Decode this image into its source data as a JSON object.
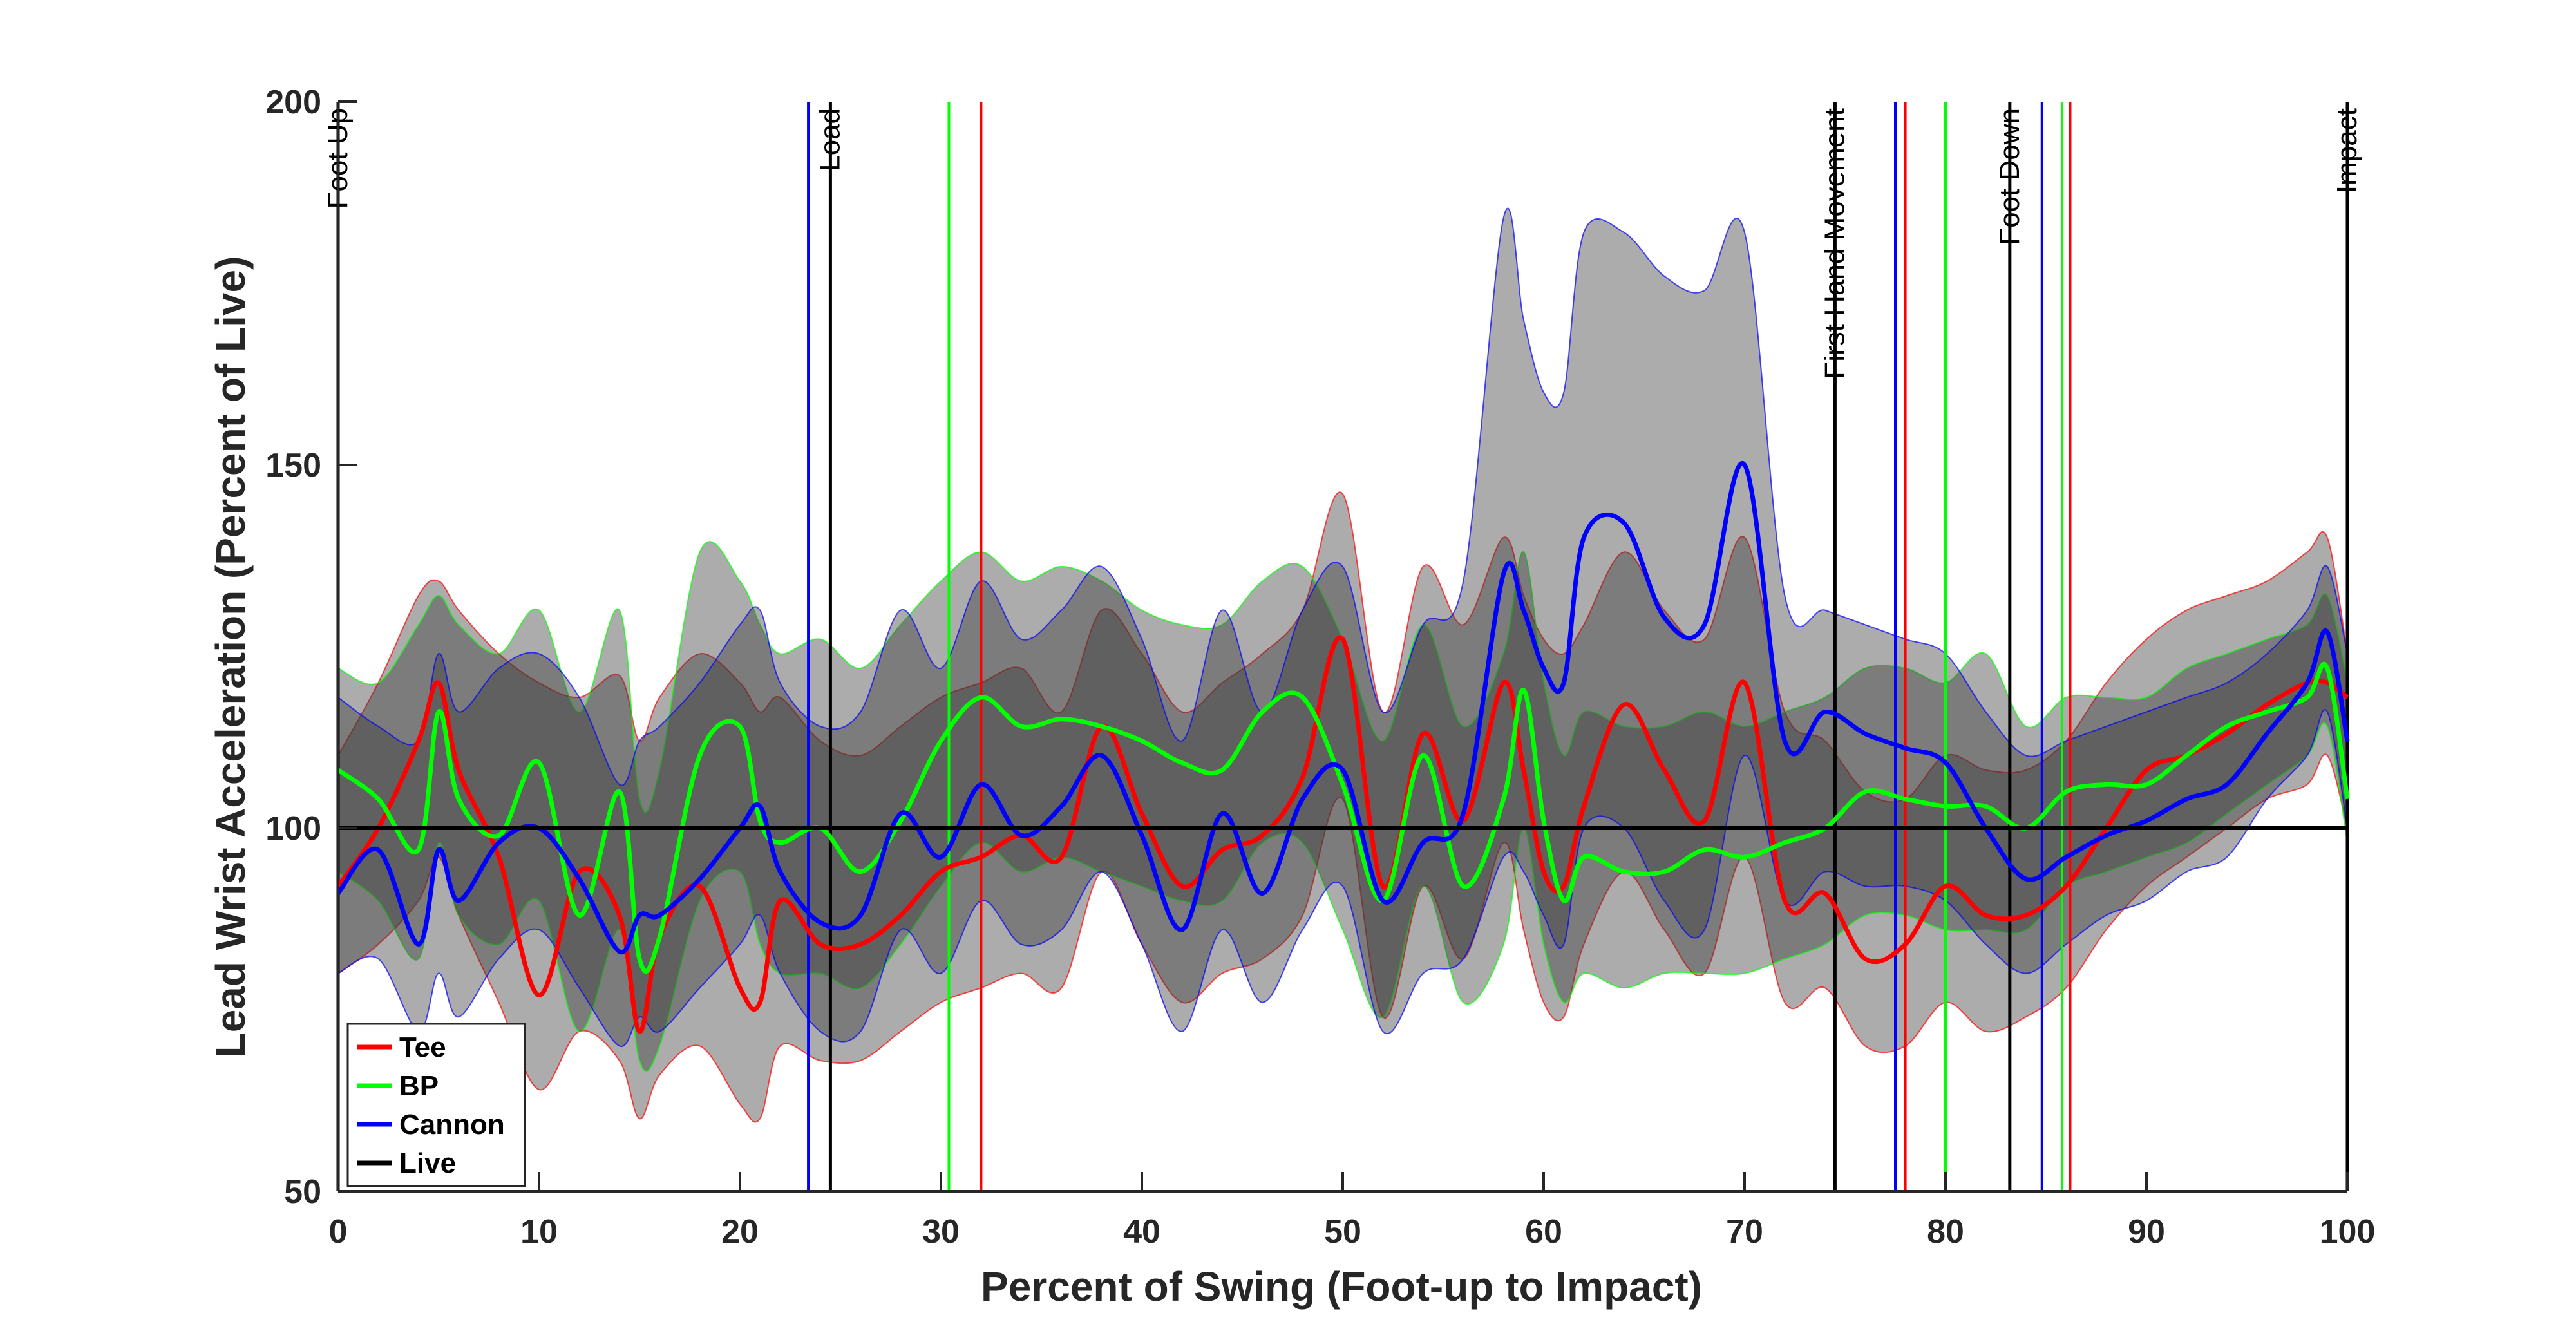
{
  "chart_data": {
    "type": "line",
    "xlabel": "Percent of Swing (Foot-up to Impact)",
    "ylabel": "Lead Wrist Acceleration (Percent of Live)",
    "xlim": [
      0,
      100
    ],
    "ylim": [
      50,
      200
    ],
    "xticks": [
      0,
      10,
      20,
      30,
      40,
      50,
      60,
      70,
      80,
      90,
      100
    ],
    "yticks": [
      50,
      100,
      150,
      200
    ],
    "grid": false,
    "legend_position": "bottom-left",
    "x": [
      0,
      2,
      4,
      5,
      6,
      8,
      10,
      12,
      14,
      15,
      16,
      18,
      20,
      21,
      22,
      24,
      26,
      28,
      30,
      32,
      34,
      36,
      38,
      40,
      42,
      44,
      46,
      48,
      50,
      52,
      54,
      56,
      58,
      59,
      60,
      61,
      62,
      64,
      66,
      68,
      70,
      72,
      74,
      76,
      78,
      80,
      82,
      84,
      86,
      88,
      90,
      92,
      94,
      96,
      98,
      99,
      100
    ],
    "series": [
      {
        "name": "Tee",
        "color": "#ff0000",
        "values": [
          92,
          100,
          112,
          120,
          108,
          96,
          77,
          94,
          88,
          72,
          85,
          92,
          78,
          76,
          90,
          84,
          84,
          88,
          94,
          96,
          99,
          96,
          114,
          102,
          92,
          97,
          99,
          107,
          126,
          92,
          113,
          101,
          120,
          108,
          94,
          92,
          103,
          117,
          108,
          101,
          120,
          90,
          91,
          82,
          84,
          92,
          88,
          88,
          92,
          100,
          108,
          110,
          113,
          117,
          120,
          120,
          118
        ],
        "band_upper": [
          110,
          120,
          132,
          134,
          130,
          124,
          120,
          118,
          121,
          112,
          118,
          124,
          120,
          116,
          118,
          112,
          110,
          114,
          118,
          120,
          122,
          116,
          130,
          124,
          116,
          120,
          124,
          130,
          146,
          116,
          136,
          128,
          140,
          132,
          126,
          124,
          128,
          138,
          130,
          126,
          140,
          116,
          112,
          105,
          104,
          110,
          108,
          108,
          112,
          120,
          126,
          130,
          132,
          134,
          138,
          140,
          124
        ],
        "band_lower": [
          80,
          84,
          90,
          96,
          88,
          76,
          64,
          72,
          68,
          60,
          66,
          70,
          62,
          60,
          70,
          68,
          68,
          72,
          76,
          78,
          80,
          78,
          94,
          84,
          76,
          80,
          82,
          88,
          104,
          74,
          92,
          82,
          98,
          86,
          76,
          74,
          84,
          94,
          86,
          80,
          96,
          76,
          78,
          70,
          70,
          76,
          72,
          74,
          78,
          86,
          92,
          96,
          100,
          104,
          106,
          110,
          100
        ]
      },
      {
        "name": "BP",
        "color": "#00ff00",
        "values": [
          108,
          104,
          97,
          116,
          104,
          99,
          109,
          88,
          105,
          82,
          85,
          110,
          114,
          101,
          98,
          100,
          94,
          101,
          112,
          118,
          114,
          115,
          114,
          112,
          109,
          108,
          116,
          118,
          106,
          90,
          110,
          92,
          104,
          119,
          101,
          90,
          96,
          94,
          94,
          97,
          96,
          98,
          100,
          105,
          104,
          103,
          103,
          100,
          105,
          106,
          106,
          110,
          114,
          116,
          118,
          122,
          104
        ],
        "band_upper": [
          122,
          120,
          128,
          132,
          128,
          124,
          130,
          116,
          130,
          104,
          108,
          138,
          134,
          128,
          124,
          126,
          122,
          128,
          134,
          138,
          134,
          136,
          134,
          130,
          128,
          128,
          134,
          136,
          126,
          112,
          128,
          114,
          124,
          138,
          120,
          110,
          116,
          114,
          114,
          116,
          114,
          116,
          118,
          122,
          122,
          120,
          124,
          114,
          118,
          118,
          118,
          122,
          124,
          126,
          128,
          132,
          120
        ],
        "band_lower": [
          94,
          90,
          82,
          98,
          88,
          84,
          90,
          72,
          86,
          68,
          70,
          90,
          94,
          84,
          80,
          80,
          78,
          84,
          92,
          98,
          94,
          96,
          94,
          92,
          90,
          90,
          98,
          98,
          86,
          74,
          92,
          76,
          84,
          100,
          84,
          76,
          80,
          78,
          80,
          80,
          80,
          82,
          84,
          88,
          88,
          86,
          86,
          86,
          92,
          94,
          96,
          98,
          102,
          106,
          110,
          114,
          98
        ]
      },
      {
        "name": "Cannon",
        "color": "#0000ff",
        "values": [
          91,
          97,
          84,
          97,
          90,
          98,
          100,
          93,
          83,
          88,
          88,
          93,
          100,
          103,
          94,
          87,
          88,
          102,
          96,
          106,
          99,
          103,
          110,
          99,
          86,
          102,
          91,
          104,
          108,
          90,
          98,
          102,
          135,
          130,
          122,
          120,
          140,
          142,
          129,
          128,
          150,
          112,
          116,
          113,
          111,
          109,
          100,
          93,
          96,
          99,
          101,
          104,
          106,
          113,
          120,
          127,
          112
        ],
        "band_upper": [
          118,
          114,
          112,
          124,
          116,
          122,
          124,
          118,
          106,
          112,
          114,
          120,
          128,
          130,
          120,
          114,
          116,
          130,
          122,
          134,
          126,
          130,
          136,
          126,
          112,
          130,
          116,
          130,
          136,
          116,
          128,
          134,
          184,
          170,
          160,
          160,
          182,
          182,
          176,
          174,
          182,
          132,
          130,
          128,
          126,
          124,
          116,
          110,
          112,
          114,
          116,
          118,
          120,
          124,
          130,
          136,
          124
        ],
        "band_lower": [
          80,
          82,
          72,
          80,
          74,
          82,
          86,
          78,
          70,
          74,
          72,
          78,
          84,
          88,
          80,
          72,
          72,
          86,
          80,
          90,
          84,
          86,
          94,
          84,
          72,
          86,
          76,
          86,
          92,
          72,
          80,
          82,
          96,
          94,
          88,
          84,
          100,
          100,
          90,
          86,
          110,
          90,
          94,
          92,
          92,
          90,
          84,
          80,
          84,
          88,
          90,
          94,
          96,
          104,
          110,
          116,
          100
        ]
      },
      {
        "name": "Live",
        "color": "#000000",
        "values": [
          100,
          100,
          100,
          100,
          100,
          100,
          100,
          100,
          100,
          100,
          100,
          100,
          100,
          100,
          100,
          100,
          100,
          100,
          100,
          100,
          100,
          100,
          100,
          100,
          100,
          100,
          100,
          100,
          100,
          100,
          100,
          100,
          100,
          100,
          100,
          100,
          100,
          100,
          100,
          100,
          100,
          100,
          100,
          100,
          100,
          100,
          100,
          100,
          100,
          100,
          100,
          100,
          100,
          100,
          100,
          100,
          100
        ]
      }
    ],
    "event_lines": [
      {
        "label": "Foot Up",
        "x": 0,
        "color": "#000000"
      },
      {
        "label": "",
        "x": 23.4,
        "color": "#0000ff"
      },
      {
        "label": "Load",
        "x": 24.5,
        "color": "#000000"
      },
      {
        "label": "",
        "x": 30.4,
        "color": "#00ff00"
      },
      {
        "label": "",
        "x": 32.0,
        "color": "#ff0000"
      },
      {
        "label": "First Hand Movement",
        "x": 74.5,
        "color": "#000000"
      },
      {
        "label": "",
        "x": 77.5,
        "color": "#0000ff"
      },
      {
        "label": "",
        "x": 78.0,
        "color": "#ff0000"
      },
      {
        "label": "",
        "x": 80.0,
        "color": "#00ff00"
      },
      {
        "label": "Foot Down",
        "x": 83.2,
        "color": "#000000"
      },
      {
        "label": "",
        "x": 84.8,
        "color": "#0000ff"
      },
      {
        "label": "",
        "x": 85.8,
        "color": "#00ff00"
      },
      {
        "label": "",
        "x": 86.2,
        "color": "#ff0000"
      },
      {
        "label": "Impact",
        "x": 100,
        "color": "#000000"
      }
    ]
  }
}
